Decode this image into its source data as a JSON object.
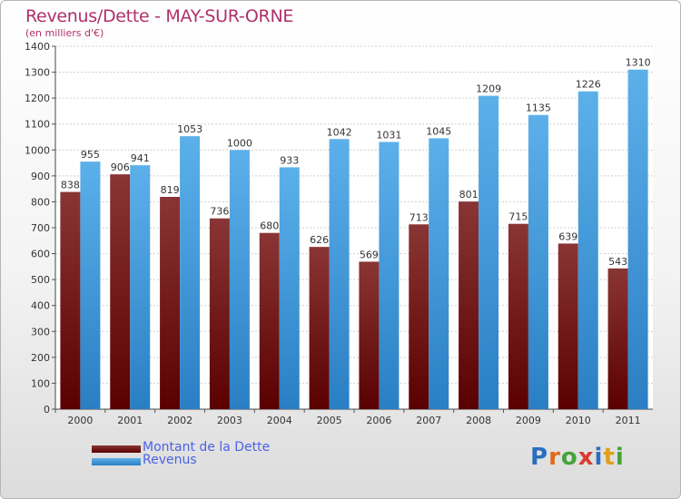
{
  "title": "Revenus/Dette - MAY-SUR-ORNE",
  "subtitle": "(en milliers d'€)",
  "colors": {
    "title": "#b0306a",
    "dette_dark": "#5a0000",
    "dette_light": "#8a3535",
    "revenus_dark": "#2a7fc4",
    "revenus_light": "#5cb0ea",
    "legend_text": "#4a62e6"
  },
  "legend": {
    "dette_label": "Montant de la Dette",
    "revenus_label": "Revenus"
  },
  "logo": {
    "text": "Proxiti",
    "letter_colors": [
      "#2a6fbf",
      "#e06a1a",
      "#43a43a",
      "#d63c2f",
      "#2a6fbf",
      "#e0a01a",
      "#43a43a"
    ]
  },
  "chart_data": {
    "type": "bar",
    "title": "Revenus/Dette - MAY-SUR-ORNE",
    "subtitle": "(en milliers d'€)",
    "categories": [
      "2000",
      "2001",
      "2002",
      "2003",
      "2004",
      "2005",
      "2006",
      "2007",
      "2008",
      "2009",
      "2010",
      "2011"
    ],
    "series": [
      {
        "name": "Montant de la Dette",
        "values": [
          838,
          906,
          819,
          736,
          680,
          626,
          569,
          713,
          801,
          715,
          639,
          543
        ]
      },
      {
        "name": "Revenus",
        "values": [
          955,
          941,
          1053,
          1000,
          933,
          1042,
          1031,
          1045,
          1209,
          1135,
          1226,
          1310
        ]
      }
    ],
    "ylim": [
      0,
      1400
    ],
    "yticks": [
      0,
      100,
      200,
      300,
      400,
      500,
      600,
      700,
      800,
      900,
      1000,
      1100,
      1200,
      1300,
      1400
    ],
    "grid": true,
    "legend_position": "bottom-left"
  }
}
